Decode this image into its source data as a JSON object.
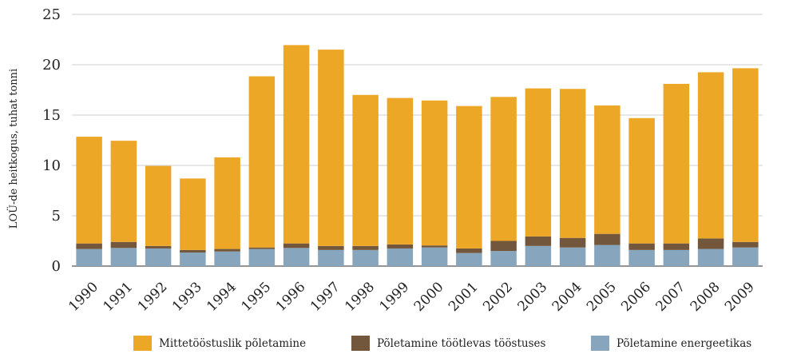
{
  "chart_data": {
    "type": "bar",
    "stacked": true,
    "ylabel": "LOÜ-de heitkogus, tuhat tonni",
    "xlabel": "",
    "ylim": [
      0,
      25
    ],
    "yticks": [
      0,
      5,
      10,
      15,
      20,
      25
    ],
    "grid": "horizontal",
    "legend_position": "bottom",
    "categories": [
      "1990",
      "1991",
      "1992",
      "1993",
      "1994",
      "1995",
      "1996",
      "1997",
      "1998",
      "1999",
      "2000",
      "2001",
      "2002",
      "2003",
      "2004",
      "2005",
      "2006",
      "2007",
      "2008",
      "2009"
    ],
    "series": [
      {
        "name": "Põletamine energeetikas",
        "color": "#87a6bd",
        "values": [
          1.7,
          1.8,
          1.75,
          1.35,
          1.45,
          1.7,
          1.8,
          1.6,
          1.6,
          1.75,
          1.85,
          1.3,
          1.5,
          2.0,
          1.85,
          2.1,
          1.6,
          1.6,
          1.7,
          1.85
        ]
      },
      {
        "name": "Põletamine töötlevas tööstuses",
        "color": "#73573c",
        "values": [
          0.55,
          0.6,
          0.25,
          0.25,
          0.25,
          0.15,
          0.45,
          0.4,
          0.4,
          0.4,
          0.2,
          0.45,
          1.0,
          0.95,
          0.95,
          1.1,
          0.65,
          0.65,
          1.05,
          0.55
        ]
      },
      {
        "name": "Mittetööstuslik põletamine",
        "color": "#eda726",
        "values": [
          10.6,
          10.05,
          7.95,
          7.1,
          9.1,
          17.0,
          19.7,
          19.5,
          15.0,
          14.55,
          14.4,
          14.15,
          14.3,
          14.7,
          14.8,
          12.75,
          12.45,
          15.85,
          16.5,
          17.25
        ]
      }
    ],
    "legend_order": [
      "Mittetööstuslik põletamine",
      "Põletamine töötlevas tööstuses",
      "Põletamine energeetikas"
    ]
  }
}
